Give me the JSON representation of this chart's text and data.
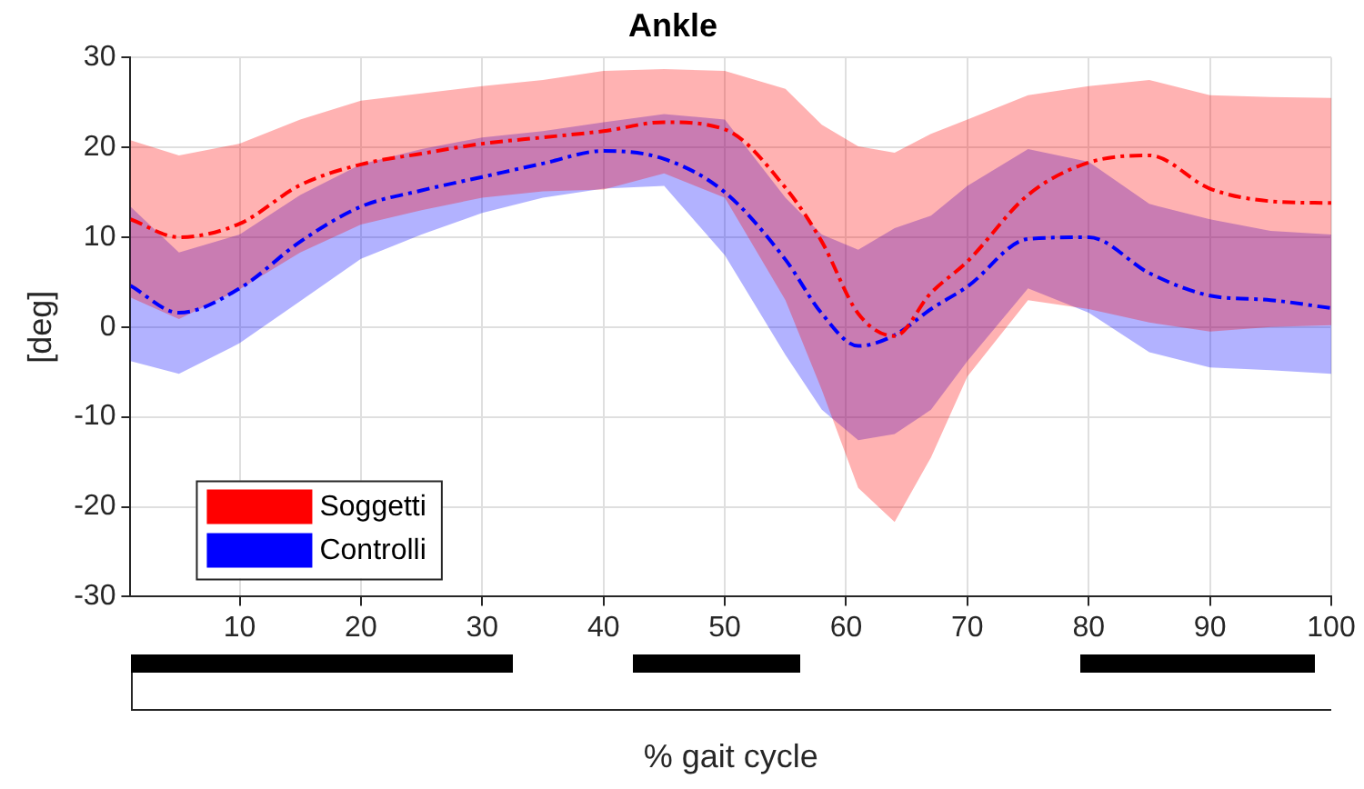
{
  "chart_data": {
    "type": "line",
    "title": "Ankle",
    "xlabel": "% gait cycle",
    "ylabel": "[deg]",
    "x": [
      1,
      5,
      10,
      15,
      20,
      25,
      30,
      35,
      40,
      45,
      50,
      55,
      58,
      61,
      64,
      67,
      70,
      75,
      80,
      85,
      90,
      95,
      100
    ],
    "series": [
      {
        "name": "Soggetti",
        "color": "#ff0000",
        "values": [
          12.0,
          10.0,
          11.5,
          15.8,
          18.1,
          19.3,
          20.4,
          21.1,
          21.8,
          22.8,
          22.0,
          15.5,
          9.5,
          1.5,
          -1.0,
          3.8,
          7.3,
          14.7,
          18.3,
          19.1,
          15.4,
          14.0,
          13.8
        ],
        "upper": [
          20.8,
          19.1,
          20.4,
          23.1,
          25.2,
          26.0,
          26.8,
          27.5,
          28.5,
          28.7,
          28.5,
          26.5,
          22.5,
          20.1,
          19.4,
          21.5,
          23.1,
          25.8,
          26.8,
          27.5,
          25.8,
          25.6,
          25.5
        ],
        "lower": [
          3.3,
          0.9,
          4.2,
          8.3,
          11.4,
          13.0,
          14.4,
          15.1,
          15.3,
          17.1,
          14.4,
          3.0,
          -7.0,
          -17.9,
          -21.7,
          -14.5,
          -5.5,
          3.0,
          2.0,
          0.5,
          -0.5,
          0.0,
          0.2
        ]
      },
      {
        "name": "Controlli",
        "color": "#0000ff",
        "values": [
          4.6,
          1.6,
          4.3,
          9.5,
          13.4,
          15.2,
          16.7,
          18.2,
          19.6,
          18.7,
          15.0,
          7.5,
          1.5,
          -2.1,
          -0.9,
          2.0,
          4.5,
          9.8,
          10.0,
          6.0,
          3.5,
          3.0,
          2.1
        ],
        "upper": [
          13.4,
          8.3,
          10.3,
          14.7,
          18.1,
          19.8,
          21.1,
          21.8,
          22.8,
          23.7,
          23.1,
          14.4,
          10.3,
          8.6,
          11.0,
          12.4,
          15.7,
          19.8,
          18.4,
          13.7,
          12.0,
          10.7,
          10.3
        ],
        "lower": [
          -3.8,
          -5.2,
          -1.8,
          2.9,
          7.6,
          10.3,
          12.7,
          14.4,
          15.4,
          15.7,
          8.0,
          -3.1,
          -9.2,
          -12.6,
          -11.9,
          -9.2,
          -3.8,
          4.3,
          1.6,
          -2.8,
          -4.5,
          -4.8,
          -5.2
        ]
      }
    ],
    "xlim": [
      1,
      100
    ],
    "xticks": [
      10,
      20,
      30,
      40,
      50,
      60,
      70,
      80,
      90,
      100
    ],
    "ylim": [
      -30,
      30
    ],
    "yticks": [
      -30,
      -20,
      -10,
      0,
      10,
      20,
      30
    ],
    "grid": true,
    "legend": "bottom left",
    "line_style": "dashed",
    "marker": "none"
  }
}
